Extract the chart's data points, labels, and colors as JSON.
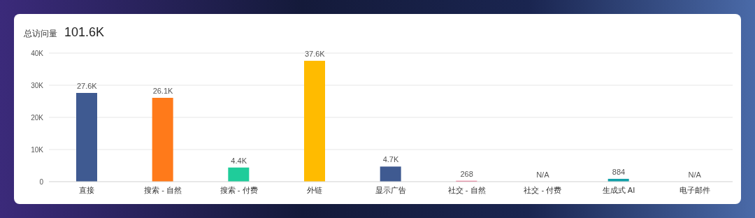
{
  "chart_data": {
    "type": "bar",
    "title": "总访问量",
    "subtitle": "101.6K",
    "categories": [
      "直接",
      "搜索 - 自然",
      "搜索 - 付费",
      "外链",
      "显示广告",
      "社交 - 自然",
      "社交 - 付费",
      "生成式 AI",
      "电子邮件"
    ],
    "values": [
      27600,
      26100,
      4400,
      37600,
      4700,
      268,
      null,
      884,
      null
    ],
    "value_labels": [
      "27.6K",
      "26.1K",
      "4.4K",
      "37.6K",
      "4.7K",
      "268",
      "N/A",
      "884",
      "N/A"
    ],
    "colors": [
      "#3f5a91",
      "#ff7a1a",
      "#1fcc9a",
      "#ffbb00",
      "#3f5a91",
      "#e8557a",
      "#8e44ad",
      "#12a0a8",
      "#e74c3c"
    ],
    "ylim": [
      0,
      40000
    ],
    "yticks": [
      {
        "value": 0,
        "label": "0"
      },
      {
        "value": 10000,
        "label": "10K"
      },
      {
        "value": 20000,
        "label": "20K"
      },
      {
        "value": 30000,
        "label": "30K"
      },
      {
        "value": 40000,
        "label": "40K"
      }
    ],
    "grid": "y",
    "legend": false
  }
}
